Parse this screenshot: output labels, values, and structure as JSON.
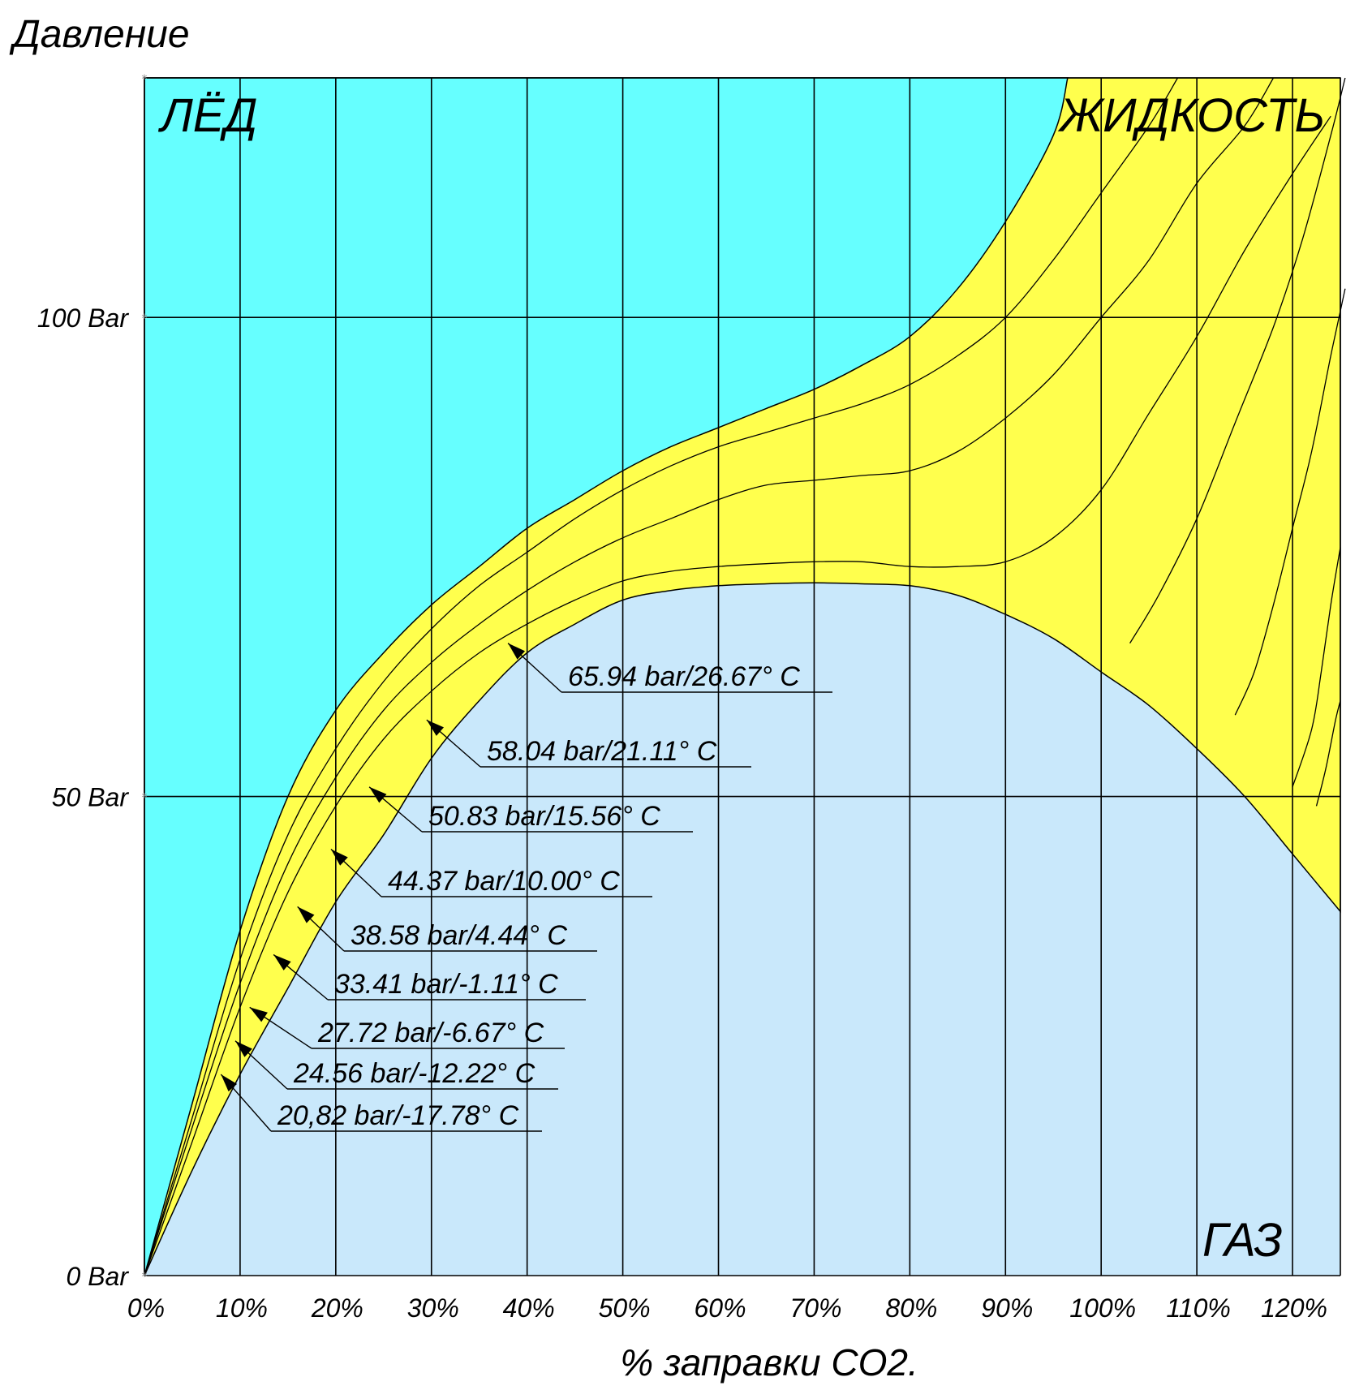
{
  "chart_data": {
    "type": "area",
    "ylabel": "Давление",
    "xlabel": "% заправки CO2.",
    "x_ticks": [
      "0%",
      "10%",
      "20%",
      "30%",
      "40%",
      "50%",
      "60%",
      "70%",
      "80%",
      "90%",
      "100%",
      "110%",
      "120%"
    ],
    "y_ticks": [
      "0 Bar",
      "50 Bar",
      "100 Bar"
    ],
    "xlim": [
      0,
      125
    ],
    "ylim": [
      0,
      125
    ],
    "grid": true,
    "region_labels": {
      "ice": "ЛЁД",
      "liquid": "ЖИДКОСТЬ",
      "gas": "ГАЗ"
    },
    "colors": {
      "ice": "#66ffff",
      "liquid": "#ffff4d",
      "gas": "#c9e8fb",
      "grid": "#000000"
    },
    "boundaries": {
      "ice_liquid": [
        [
          0,
          0
        ],
        [
          5,
          18
        ],
        [
          10,
          36
        ],
        [
          15,
          50
        ],
        [
          20,
          59
        ],
        [
          25,
          65
        ],
        [
          30,
          70
        ],
        [
          35,
          74
        ],
        [
          40,
          78
        ],
        [
          45,
          81
        ],
        [
          50,
          84
        ],
        [
          55,
          86.5
        ],
        [
          60,
          88.5
        ],
        [
          65,
          90.5
        ],
        [
          70,
          92.5
        ],
        [
          75,
          95
        ],
        [
          80,
          98
        ],
        [
          85,
          103
        ],
        [
          90,
          110
        ],
        [
          95,
          119
        ],
        [
          96.5,
          125
        ]
      ],
      "liquid_gas": [
        [
          0,
          0
        ],
        [
          5,
          11
        ],
        [
          10,
          21
        ],
        [
          15,
          30
        ],
        [
          20,
          39
        ],
        [
          25,
          46
        ],
        [
          30,
          54
        ],
        [
          35,
          60
        ],
        [
          40,
          65
        ],
        [
          45,
          68
        ],
        [
          50,
          70.5
        ],
        [
          55,
          71.5
        ],
        [
          60,
          72
        ],
        [
          65,
          72.2
        ],
        [
          70,
          72.3
        ],
        [
          75,
          72.2
        ],
        [
          80,
          72
        ],
        [
          85,
          71
        ],
        [
          90,
          69
        ],
        [
          95,
          66.5
        ],
        [
          100,
          63
        ],
        [
          105,
          59.5
        ],
        [
          110,
          55
        ],
        [
          115,
          50
        ],
        [
          120,
          44
        ],
        [
          125,
          38
        ]
      ]
    },
    "isotherms": [
      [
        [
          0,
          0
        ],
        [
          5,
          14
        ],
        [
          10,
          28
        ],
        [
          15,
          40
        ],
        [
          20,
          49
        ],
        [
          25,
          56
        ],
        [
          30,
          61
        ],
        [
          35,
          65
        ],
        [
          40,
          68
        ],
        [
          45,
          70.5
        ],
        [
          50,
          72.5
        ],
        [
          55,
          73.5
        ],
        [
          60,
          74
        ],
        [
          65,
          74.3
        ],
        [
          70,
          74.5
        ],
        [
          75,
          74.5
        ],
        [
          80,
          74
        ],
        [
          85,
          74
        ],
        [
          90,
          74.5
        ],
        [
          95,
          77
        ],
        [
          100,
          82
        ],
        [
          105,
          90
        ],
        [
          110,
          98
        ],
        [
          115,
          107
        ],
        [
          120,
          115
        ],
        [
          124,
          121
        ]
      ],
      [
        [
          0,
          0
        ],
        [
          5,
          15.5
        ],
        [
          10,
          30.5
        ],
        [
          15,
          43
        ],
        [
          20,
          52
        ],
        [
          25,
          59
        ],
        [
          30,
          64
        ],
        [
          35,
          68
        ],
        [
          40,
          71.5
        ],
        [
          45,
          74.5
        ],
        [
          50,
          77
        ],
        [
          55,
          79
        ],
        [
          60,
          81
        ],
        [
          65,
          82.5
        ],
        [
          70,
          83
        ],
        [
          75,
          83.5
        ],
        [
          80,
          84
        ],
        [
          85,
          86
        ],
        [
          90,
          89.5
        ],
        [
          95,
          94
        ],
        [
          100,
          100
        ],
        [
          105,
          106
        ],
        [
          110,
          114
        ],
        [
          115,
          120
        ],
        [
          118,
          125
        ]
      ],
      [
        [
          0,
          0
        ],
        [
          5,
          16.5
        ],
        [
          10,
          33
        ],
        [
          15,
          46
        ],
        [
          20,
          55
        ],
        [
          25,
          62
        ],
        [
          30,
          67.5
        ],
        [
          35,
          72
        ],
        [
          40,
          75.5
        ],
        [
          45,
          79
        ],
        [
          50,
          82
        ],
        [
          55,
          84.5
        ],
        [
          60,
          86.5
        ],
        [
          65,
          88
        ],
        [
          70,
          89.5
        ],
        [
          75,
          91
        ],
        [
          80,
          93
        ],
        [
          85,
          96
        ],
        [
          90,
          100
        ],
        [
          95,
          106
        ],
        [
          100,
          113
        ],
        [
          105,
          120
        ],
        [
          108,
          125
        ]
      ],
      [
        [
          103,
          66
        ],
        [
          106,
          71
        ],
        [
          110,
          79
        ],
        [
          114,
          89
        ],
        [
          118,
          99
        ],
        [
          121,
          108
        ],
        [
          124,
          119
        ],
        [
          125.5,
          125
        ]
      ],
      [
        [
          114,
          58.5
        ],
        [
          116,
          63
        ],
        [
          118,
          70
        ],
        [
          120,
          78
        ],
        [
          122,
          86
        ],
        [
          124,
          96
        ],
        [
          125.5,
          103
        ]
      ],
      [
        [
          120,
          51
        ],
        [
          122,
          57
        ],
        [
          123,
          63
        ],
        [
          124,
          70
        ],
        [
          125,
          76
        ]
      ],
      [
        [
          122.5,
          49
        ],
        [
          123.5,
          53
        ],
        [
          124.5,
          58
        ],
        [
          125,
          60
        ]
      ]
    ],
    "annotations": [
      {
        "label": "65.94 bar/26.67° C",
        "point": [
          38,
          66
        ]
      },
      {
        "label": "58.04 bar/21.11° C",
        "point": [
          29.5,
          58
        ]
      },
      {
        "label": "50.83 bar/15.56° C",
        "point": [
          23.5,
          51
        ]
      },
      {
        "label": "44.37 bar/10.00° C",
        "point": [
          19.5,
          44.5
        ]
      },
      {
        "label": "38.58 bar/4.44° C",
        "point": [
          16,
          38.5
        ]
      },
      {
        "label": "33.41 bar/-1.11° C",
        "point": [
          13.5,
          33.5
        ]
      },
      {
        "label": "27.72 bar/-6.67° C",
        "point": [
          11,
          28
        ]
      },
      {
        "label": "24.56 bar/-12.22° C",
        "point": [
          9.5,
          24.5
        ]
      },
      {
        "label": "20,82 bar/-17.78° C",
        "point": [
          8,
          21
        ]
      }
    ]
  }
}
